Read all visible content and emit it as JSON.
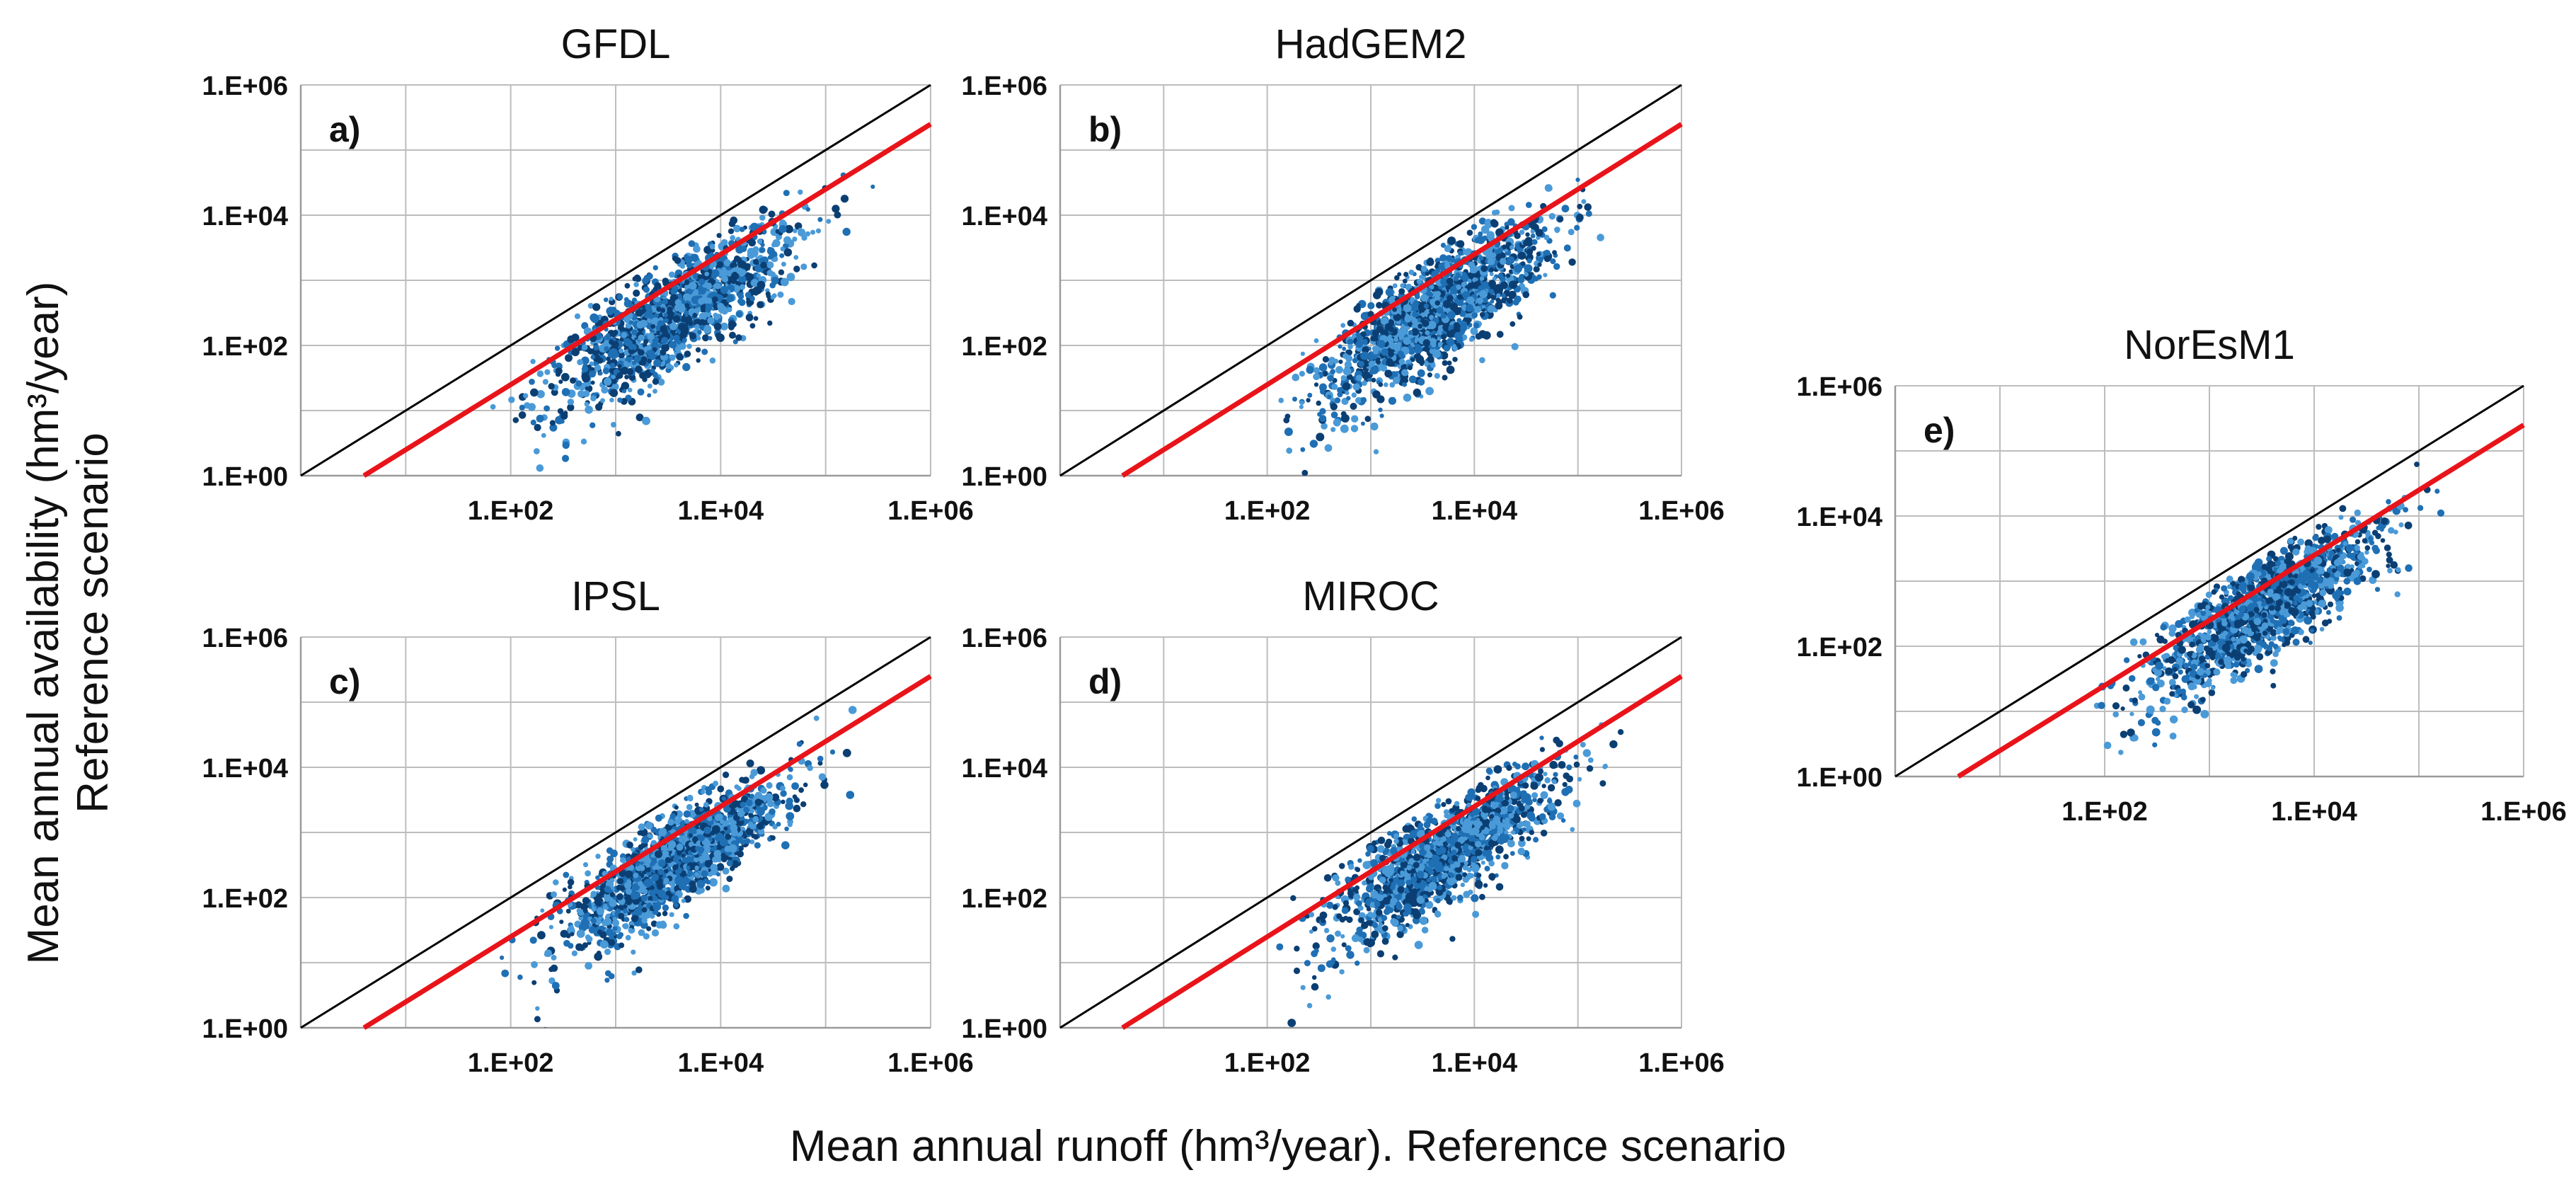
{
  "figure": {
    "y_axis_title_line1": "Mean annual  availability (hm³/year)",
    "y_axis_title_line2": "Reference scenario",
    "x_axis_title": "Mean annual  runoff (hm³/year). Reference scenario"
  },
  "colors": {
    "point_dark": "#0b3f73",
    "point_mid": "#1f6fb4",
    "point_light": "#4a9ad8",
    "fit_line": "#e8141a",
    "one_to_one_line": "#000000",
    "grid": "#bdbdbd"
  },
  "chart_data": [
    {
      "type": "scatter",
      "title": "GFDL",
      "label": "a)",
      "xscale": "log",
      "yscale": "log",
      "xlim": [
        1,
        1000000
      ],
      "ylim": [
        1,
        1000000
      ],
      "x_tick_labels": [
        "1.E+02",
        "1.E+04",
        "1.E+06"
      ],
      "y_tick_labels": [
        "1.E+00",
        "1.E+02",
        "1.E+04",
        "1.E+06"
      ],
      "reference_line": {
        "name": "1:1",
        "x": [
          1,
          1000000
        ],
        "y": [
          1,
          1000000
        ]
      },
      "fit_line": {
        "x": [
          4,
          1000000
        ],
        "y": [
          1,
          250000
        ]
      },
      "point_cloud": {
        "count": 1400,
        "log10_x_center": 3.55,
        "log10_x_sd": 0.55,
        "slope": 0.93,
        "offset_log10": -0.75,
        "log10_y_sd": 0.36,
        "log10_x_min": 1.8,
        "log10_x_max": 5.7,
        "seed": 11
      }
    },
    {
      "type": "scatter",
      "title": "HadGEM2",
      "label": "b)",
      "xscale": "log",
      "yscale": "log",
      "xlim": [
        1,
        1000000
      ],
      "ylim": [
        1,
        1000000
      ],
      "x_tick_labels": [
        "1.E+02",
        "1.E+04",
        "1.E+06"
      ],
      "y_tick_labels": [
        "1.E+00",
        "1.E+02",
        "1.E+04",
        "1.E+06"
      ],
      "reference_line": {
        "name": "1:1",
        "x": [
          1,
          1000000
        ],
        "y": [
          1,
          1000000
        ]
      },
      "fit_line": {
        "x": [
          4,
          1000000
        ],
        "y": [
          1,
          250000
        ]
      },
      "point_cloud": {
        "count": 1400,
        "log10_x_center": 3.6,
        "log10_x_sd": 0.55,
        "slope": 0.95,
        "offset_log10": -0.85,
        "log10_y_sd": 0.38,
        "log10_x_min": 2.0,
        "log10_x_max": 5.6,
        "seed": 23
      }
    },
    {
      "type": "scatter",
      "title": "IPSL",
      "label": "c)",
      "xscale": "log",
      "yscale": "log",
      "xlim": [
        1,
        1000000
      ],
      "ylim": [
        1,
        1000000
      ],
      "x_tick_labels": [
        "1.E+02",
        "1.E+04",
        "1.E+06"
      ],
      "y_tick_labels": [
        "1.E+00",
        "1.E+02",
        "1.E+04",
        "1.E+06"
      ],
      "reference_line": {
        "name": "1:1",
        "x": [
          1,
          1000000
        ],
        "y": [
          1,
          1000000
        ]
      },
      "fit_line": {
        "x": [
          4,
          1000000
        ],
        "y": [
          1,
          250000
        ]
      },
      "point_cloud": {
        "count": 1400,
        "log10_x_center": 3.55,
        "log10_x_sd": 0.55,
        "slope": 0.95,
        "offset_log10": -0.75,
        "log10_y_sd": 0.34,
        "log10_x_min": 1.9,
        "log10_x_max": 5.6,
        "seed": 37
      }
    },
    {
      "type": "scatter",
      "title": "MIROC",
      "label": "d)",
      "xscale": "log",
      "yscale": "log",
      "xlim": [
        1,
        1000000
      ],
      "ylim": [
        1,
        1000000
      ],
      "x_tick_labels": [
        "1.E+02",
        "1.E+04",
        "1.E+06"
      ],
      "y_tick_labels": [
        "1.E+00",
        "1.E+02",
        "1.E+04",
        "1.E+06"
      ],
      "reference_line": {
        "name": "1:1",
        "x": [
          1,
          1000000
        ],
        "y": [
          1,
          1000000
        ]
      },
      "fit_line": {
        "x": [
          4,
          1000000
        ],
        "y": [
          1,
          250000
        ]
      },
      "point_cloud": {
        "count": 1400,
        "log10_x_center": 3.65,
        "log10_x_sd": 0.55,
        "slope": 0.96,
        "offset_log10": -0.8,
        "log10_y_sd": 0.34,
        "log10_x_min": 2.1,
        "log10_x_max": 5.6,
        "seed": 41
      }
    },
    {
      "type": "scatter",
      "title": "NorEsM1",
      "label": "e)",
      "xscale": "log",
      "yscale": "log",
      "xlim": [
        1,
        1000000
      ],
      "ylim": [
        1,
        1000000
      ],
      "x_tick_labels": [
        "1.E+02",
        "1.E+04",
        "1.E+06"
      ],
      "y_tick_labels": [
        "1.E+00",
        "1.E+02",
        "1.E+04",
        "1.E+06"
      ],
      "reference_line": {
        "name": "1:1",
        "x": [
          1,
          1000000
        ],
        "y": [
          1,
          1000000
        ]
      },
      "fit_line": {
        "x": [
          4,
          1000000
        ],
        "y": [
          1,
          250000
        ]
      },
      "point_cloud": {
        "count": 1400,
        "log10_x_center": 3.55,
        "log10_x_sd": 0.55,
        "slope": 0.94,
        "offset_log10": -0.65,
        "log10_y_sd": 0.33,
        "log10_x_min": 1.9,
        "log10_x_max": 5.7,
        "seed": 53
      }
    }
  ]
}
